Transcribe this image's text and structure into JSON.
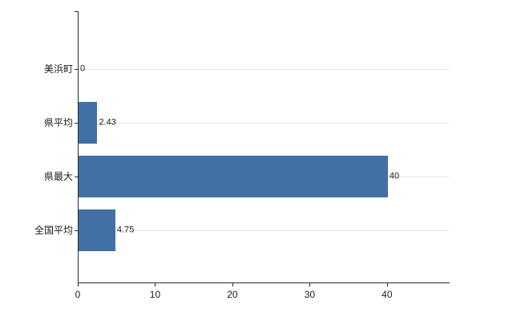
{
  "chart_data": {
    "type": "bar",
    "orientation": "horizontal",
    "title": "",
    "xlabel": "",
    "ylabel": "",
    "categories": [
      "美浜町",
      "県平均",
      "県最大",
      "全国平均"
    ],
    "values": [
      0,
      2.43,
      40,
      4.75
    ],
    "value_labels": [
      "0",
      "2.43",
      "40",
      "4.75"
    ],
    "xlim": [
      0,
      48
    ],
    "x_ticks": [
      0,
      10,
      20,
      30,
      40
    ],
    "bar_color": "#4170a6",
    "grid": true,
    "legend": "none"
  }
}
